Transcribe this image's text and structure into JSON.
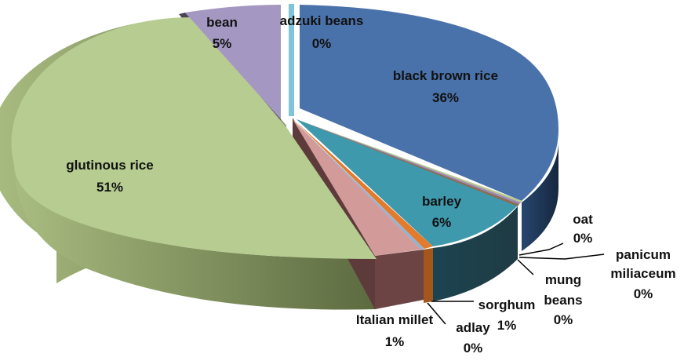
{
  "chart_data": {
    "type": "pie",
    "style": "3d-exploded",
    "legend": "none",
    "slices": [
      {
        "label": "black brown rice",
        "value_label": "36%",
        "value": 36,
        "color": "#4a72aa"
      },
      {
        "label": "barley",
        "value_label": "6%",
        "value": 6,
        "color": "#3e99ad"
      },
      {
        "label": "oat",
        "value_label": "0%",
        "value": 0.2,
        "color": "#8a6e58"
      },
      {
        "label": "panicum miliaceum",
        "value_label": "0%",
        "value": 0.2,
        "color": "#9e86b8"
      },
      {
        "label": "mung beans",
        "value_label": "0%",
        "value": 0.2,
        "color": "#b8cc8a"
      },
      {
        "label": "sorghum",
        "value_label": "1%",
        "value": 0.5,
        "color": "#e37b2c"
      },
      {
        "label": "adlay",
        "value_label": "0%",
        "value": 0.3,
        "color": "#8eb4d8"
      },
      {
        "label": "Italian millet",
        "value_label": "1%",
        "value": 1.2,
        "color": "#d39a9a"
      },
      {
        "label": "glutinous rice",
        "value_label": "51%",
        "value": 51,
        "color": "#b7cc91"
      },
      {
        "label": "bean",
        "value_label": "5%",
        "value": 5,
        "color": "#a498c2"
      },
      {
        "label": "adzuki beans",
        "value_label": "0%",
        "value": 0.4,
        "color": "#7fc4d9"
      }
    ]
  }
}
